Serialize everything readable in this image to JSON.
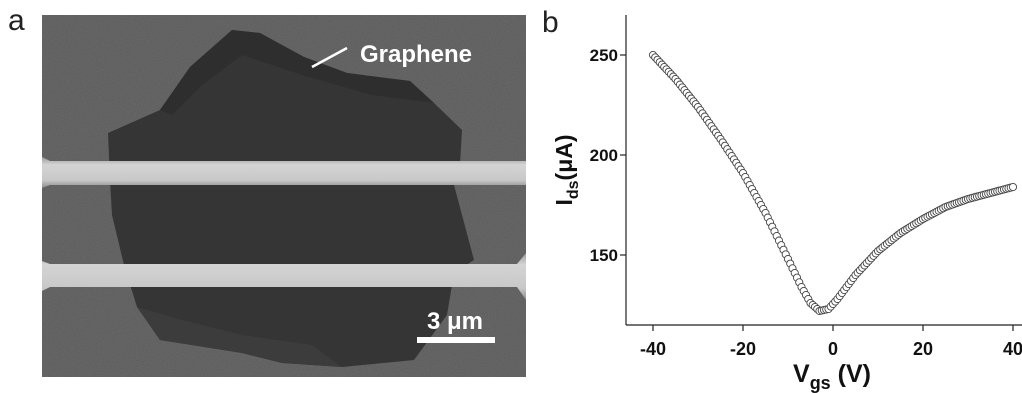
{
  "panel_a": {
    "label": "a",
    "annotation": "Graphene",
    "scale_bar_label": "3 μm"
  },
  "panel_b": {
    "label": "b"
  },
  "chart_data": {
    "type": "scatter",
    "marker": "open circle",
    "xlabel_main": "V",
    "xlabel_sub": "gs",
    "xlabel_unit": " (V)",
    "ylabel_main": "I",
    "ylabel_sub": "ds",
    "ylabel_unit": "(μA)",
    "xlim": [
      -46,
      42
    ],
    "ylim": [
      115,
      270
    ],
    "xticks": [
      -40,
      -20,
      0,
      20,
      40
    ],
    "yticks": [
      150,
      200,
      250
    ],
    "grid": false,
    "x_range": [
      -40,
      40
    ],
    "x_step": 0.5,
    "curve_points": [
      [
        -40,
        250
      ],
      [
        -35,
        238
      ],
      [
        -30,
        224
      ],
      [
        -25,
        208
      ],
      [
        -20,
        191
      ],
      [
        -15,
        171
      ],
      [
        -10,
        148
      ],
      [
        -7,
        134
      ],
      [
        -5,
        126
      ],
      [
        -3,
        122
      ],
      [
        -1,
        123
      ],
      [
        1,
        128
      ],
      [
        5,
        140
      ],
      [
        10,
        152
      ],
      [
        15,
        161
      ],
      [
        20,
        168
      ],
      [
        25,
        174
      ],
      [
        30,
        178
      ],
      [
        35,
        181
      ],
      [
        40,
        184
      ]
    ]
  }
}
